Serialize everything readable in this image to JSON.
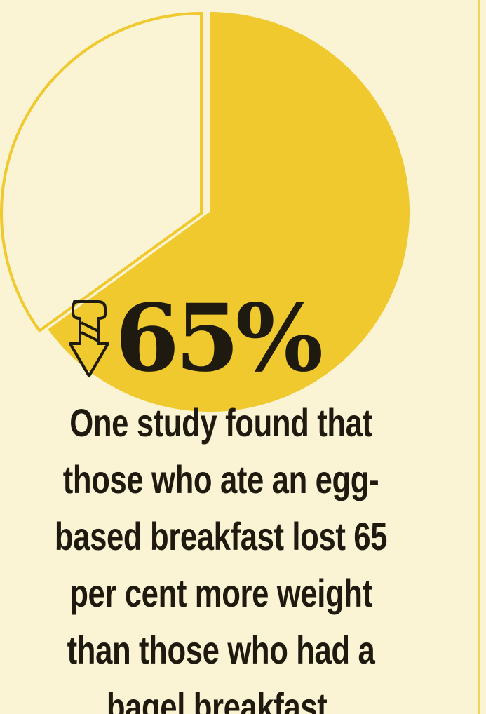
{
  "chart_data": {
    "type": "pie",
    "slices": [
      {
        "label": "",
        "value": 65,
        "color": "#f0c92e"
      },
      {
        "label": "",
        "value": 35,
        "color": "#fbf4d4"
      }
    ]
  },
  "stat": {
    "value": "65%",
    "arrow_icon": "down-arrow-icon"
  },
  "caption": "One study found that those who ate an egg-based breakfast lost 65 per cent more weight than those who had a bagel breakfast.",
  "colors": {
    "background": "#fbf4d4",
    "accent": "#f0c92e",
    "text": "#1f1a10"
  }
}
